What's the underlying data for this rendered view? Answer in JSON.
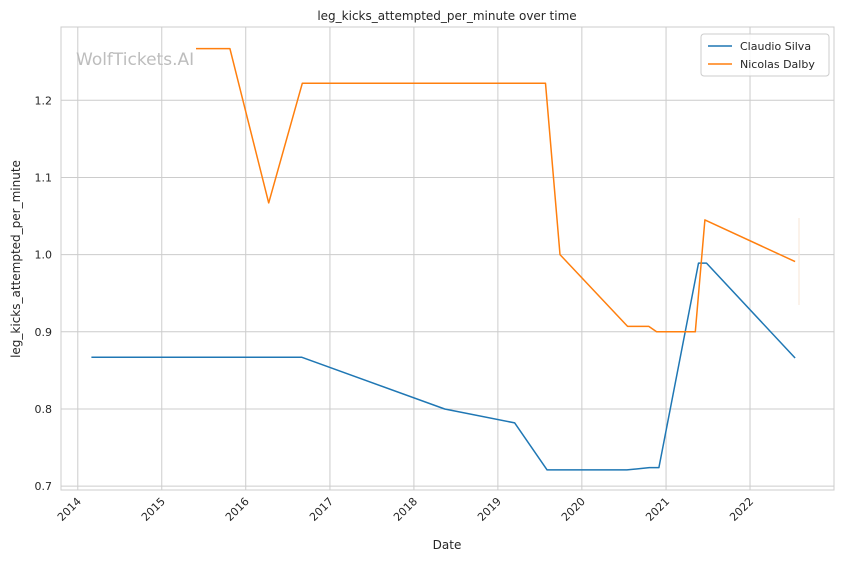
{
  "chart_data": {
    "type": "line",
    "title": "leg_kicks_attempted_per_minute over time",
    "xlabel": "Date",
    "ylabel": "leg_kicks_attempted_per_minute",
    "watermark": "WolfTickets.AI",
    "xlim": [
      "2013-10-20",
      "2023-01-01"
    ],
    "ylim": [
      0.695,
      1.295
    ],
    "x_ticks": [
      "2014",
      "2015",
      "2016",
      "2017",
      "2018",
      "2019",
      "2020",
      "2021",
      "2022"
    ],
    "y_ticks": [
      "0.7",
      "0.8",
      "0.9",
      "1.0",
      "1.1",
      "1.2"
    ],
    "grid": true,
    "legend_position": "top-right",
    "series": [
      {
        "name": "Claudio Silva",
        "color": "#1f77b4",
        "points": [
          [
            "2014-03-01",
            0.867
          ],
          [
            "2016-09-01",
            0.867
          ],
          [
            "2018-05-15",
            0.8
          ],
          [
            "2019-03-15",
            0.782
          ],
          [
            "2019-08-03",
            0.721
          ],
          [
            "2020-07-15",
            0.721
          ],
          [
            "2020-10-20",
            0.724
          ],
          [
            "2020-12-01",
            0.724
          ],
          [
            "2021-05-22",
            0.989
          ],
          [
            "2021-06-26",
            0.989
          ],
          [
            "2022-07-16",
            0.866
          ]
        ]
      },
      {
        "name": "Nicolas Dalby",
        "color": "#ff7f0e",
        "points": [
          [
            "2015-05-30",
            1.267
          ],
          [
            "2015-10-24",
            1.267
          ],
          [
            "2016-04-10",
            1.067
          ],
          [
            "2016-09-03",
            1.222
          ],
          [
            "2019-07-27",
            1.222
          ],
          [
            "2019-09-28",
            1.0
          ],
          [
            "2020-07-18",
            0.907
          ],
          [
            "2020-10-18",
            0.907
          ],
          [
            "2020-11-21",
            0.9
          ],
          [
            "2021-05-08",
            0.9
          ],
          [
            "2021-06-19",
            1.045
          ],
          [
            "2022-07-16",
            0.991
          ]
        ]
      }
    ]
  }
}
